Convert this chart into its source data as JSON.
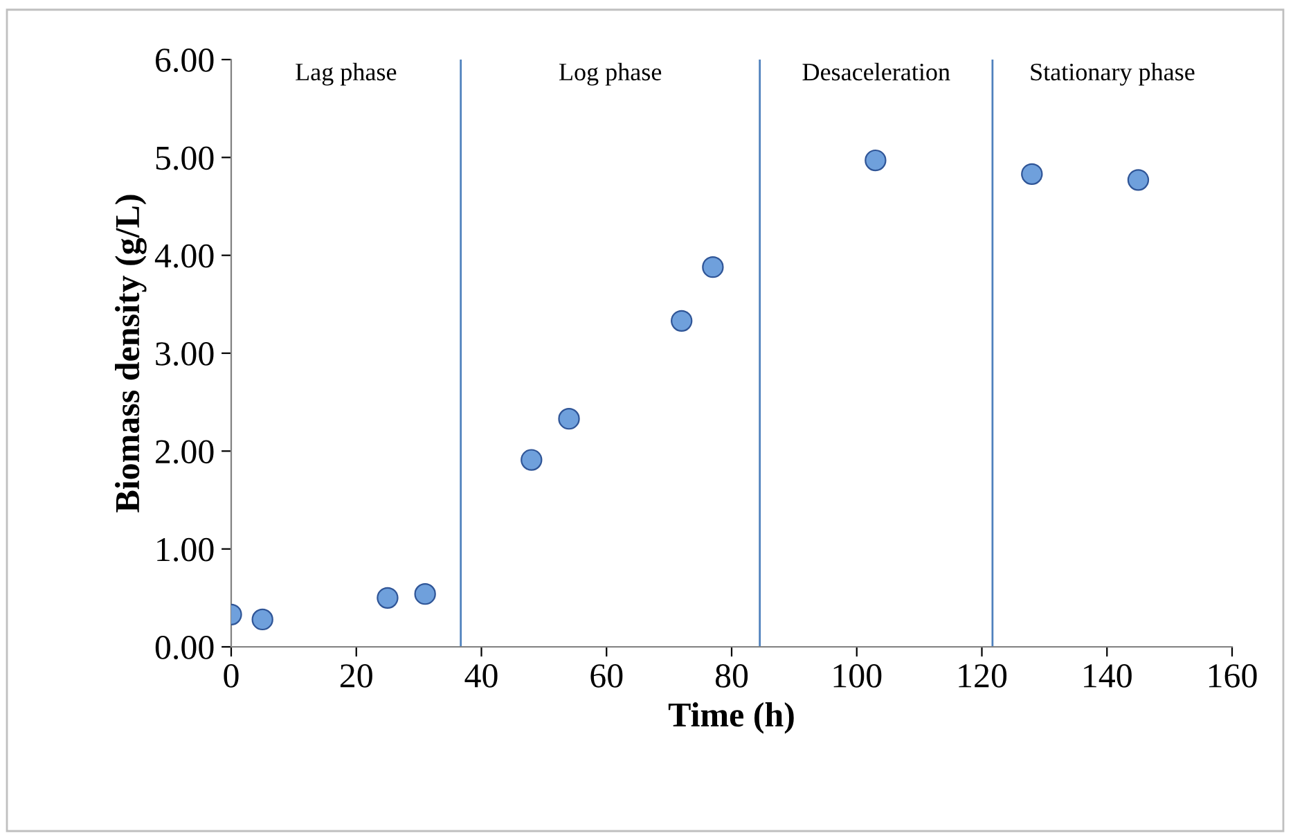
{
  "chart_data": {
    "type": "scatter",
    "xlabel": "Time (h)",
    "ylabel": "Biomass density (g/L)",
    "x": [
      0,
      5,
      25,
      31,
      48,
      54,
      72,
      77,
      103,
      128,
      145
    ],
    "values": [
      0.33,
      0.28,
      0.5,
      0.54,
      1.91,
      2.33,
      3.33,
      3.88,
      4.97,
      4.83,
      4.77
    ],
    "color": "#6fa0dc",
    "marker": "circle",
    "grid": false,
    "legend": false,
    "xlim": [
      0,
      160
    ],
    "xticks": [
      0,
      20,
      40,
      60,
      80,
      100,
      120,
      140,
      160
    ],
    "ylim": [
      0,
      6
    ],
    "yticks": [
      {
        "value": 0,
        "label": "0.00"
      },
      {
        "value": 1,
        "label": "1.00"
      },
      {
        "value": 2,
        "label": "2.00"
      },
      {
        "value": 3,
        "label": "3.00"
      },
      {
        "value": 4,
        "label": "4.00"
      },
      {
        "value": 5,
        "label": "5.00"
      },
      {
        "value": 6,
        "label": "6.00"
      }
    ],
    "ref_lines": [
      {
        "axis": "x",
        "value": 36.7,
        "color": "#4f81bd"
      },
      {
        "axis": "x",
        "value": 84.5,
        "color": "#4f81bd"
      },
      {
        "axis": "x",
        "value": 121.7,
        "color": "#4f81bd"
      }
    ],
    "annotations": [
      "Lag phase",
      "Log phase",
      "Desaceleration",
      "Stationary phase"
    ]
  }
}
